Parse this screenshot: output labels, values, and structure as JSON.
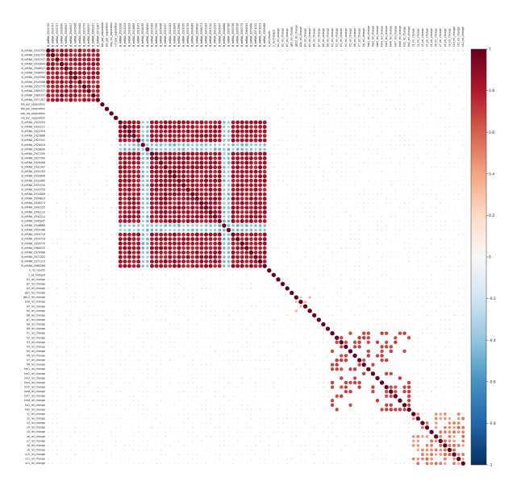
{
  "chart_data": {
    "type": "heatmap",
    "variant": "correlation-circle-matrix",
    "title": "",
    "colorbar": {
      "range": [
        -1,
        1
      ],
      "ticks": [
        -1,
        -0.8,
        -0.6,
        -0.4,
        -0.2,
        0,
        0.2,
        0.4,
        0.6,
        0.8,
        1
      ],
      "tick_labels": [
        "-1",
        "-0.8",
        "-0.6",
        "-0.4",
        "-0.2",
        "0",
        "0.2",
        "0.4",
        "0.6",
        "0.8",
        "1"
      ],
      "colors": [
        "#053061",
        "#2166ac",
        "#4393c3",
        "#92c5de",
        "#d1e5f0",
        "#f7f7f7",
        "#fddbc7",
        "#f4a582",
        "#d6604d",
        "#b2182b",
        "#67001f"
      ]
    },
    "variables": [
      "B_mRNA_2932720",
      "B_mRNA_2932757",
      "B_mRNA_2932757",
      "B_mRNA_2932840",
      "B_mRNA_2948947",
      "B_mRNA_2948947",
      "B_mRNA_2945566",
      "B_mRNA_2945588",
      "B_mRNA_2952770",
      "B_mRNA_2960337",
      "B_mRNA_2960337",
      "B_mRNA_2971267",
      "bio_per_separation",
      "bio_per_separation",
      "sep_vol_separation",
      "vol_per_separation",
      "B_mRNA_2922204",
      "B_mRNA_2922221",
      "B_mRNA_2922429",
      "B_mRNA_2923686",
      "B_mRNA_2923341",
      "B_mRNA_2926419",
      "B_mRNA_2926840",
      "B_mRNA_2927295",
      "B_mRNA_2927399",
      "B_mRNA_2929496",
      "B_mRNA_2931347",
      "B_mRNA_2932183",
      "B_mRNA_2932849",
      "B_mRNA_2932980",
      "B_mRNA_2933250",
      "B_mRNA_2933759",
      "B_mRNA_2934089",
      "B_mRNA_2934810",
      "B_mRNA_2936273",
      "B_mRNA_2942195",
      "B_mRNA_2942110",
      "B_mRNA_2942214",
      "B_mRNA_2945047",
      "B_mRNA_2946886",
      "B_mRNA_2950786",
      "B_mRNA_2950716",
      "B_mRNA_2950716",
      "B_mRNA_2950779",
      "B_mRNA_2960033",
      "B_mRNA_2970466",
      "B_mRNA_2971222",
      "B_mRNA_2971223",
      "B_mRNA_2980266",
      "n_rel_results",
      "n_rel_hotspot",
      "b1_rel_change",
      "b2_rel_change",
      "b3_rel_change",
      "gb1_rel_change",
      "gb12_rel_change",
      "b3a_rel_change",
      "b4_rel_change",
      "b5_rel_change",
      "b6_rel_change",
      "b7_rel_change",
      "b8_rel_change",
      "b9_rel_change",
      "h1_rel_change",
      "h2_rel_change",
      "h3_rel_change",
      "h4_rel_change",
      "h5_rel_change",
      "h6_rel_change",
      "h7_rel_change",
      "h8_rel_change",
      "hm1_rel_change",
      "hm2_rel_change",
      "hm3_rel_change",
      "hm4_rel_change",
      "hm5_rel_change",
      "hm6_rel_change",
      "hm7_rel_change",
      "hm8_rel_change",
      "hd1_rel_change",
      "hd2_rel_change",
      "s1_rel_change",
      "s2_rel_change",
      "s3_rel_change",
      "s4_rel_change",
      "s5_rel_change",
      "s6_rel_change",
      "s7_rel_change",
      "s8_rel_change",
      "s9_rel_change",
      "s10_rel_change",
      "s11_rel_change",
      "s12_rel_change"
    ],
    "blocks": [
      {
        "range": [
          0,
          11
        ],
        "pattern": "mostly-strong-positive",
        "strength": 0.9
      },
      {
        "range": [
          16,
          48
        ],
        "pattern": "mostly-strong-positive-with-negative-bands",
        "strength": 0.9
      },
      {
        "range": [
          53,
          58
        ],
        "pattern": "sparse-positive",
        "strength": 0.5
      },
      {
        "range": [
          63,
          80
        ],
        "pattern": "sparse-positive",
        "strength": 0.85
      },
      {
        "range": [
          81,
          93
        ],
        "pattern": "moderate-positive",
        "strength": 0.7
      }
    ],
    "diagonal": 1,
    "background": "weak-near-zero"
  }
}
